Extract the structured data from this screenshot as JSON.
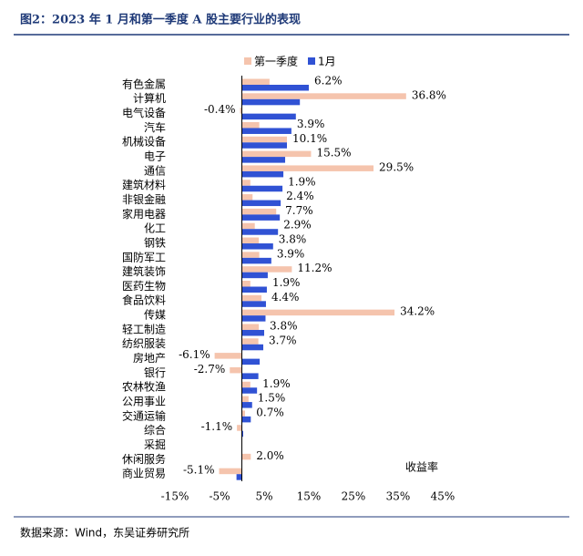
{
  "title": "图2：2023 年 1 月和第一季度 A 股主要行业的表现",
  "source": "数据来源：Wind，东吴证券研究所",
  "chart_data": {
    "type": "hbar",
    "x_annotation": "收益率",
    "categories": [
      "有色金属",
      "计算机",
      "电气设备",
      "汽车",
      "机械设备",
      "电子",
      "通信",
      "建筑材料",
      "非银金融",
      "家用电器",
      "化工",
      "钢铁",
      "国防军工",
      "建筑装饰",
      "医药生物",
      "食品饮料",
      "传媒",
      "轻工制造",
      "纺织服装",
      "房地产",
      "银行",
      "农林牧渔",
      "公用事业",
      "交通运输",
      "综合",
      "采掘",
      "休闲服务",
      "商业贸易"
    ],
    "series": [
      {
        "name": "第一季度",
        "color": "#f5c4ad",
        "values": [
          6.2,
          36.8,
          -0.4,
          3.9,
          10.1,
          15.5,
          29.5,
          1.9,
          2.4,
          7.7,
          2.9,
          3.8,
          3.9,
          11.2,
          1.9,
          4.4,
          34.2,
          3.8,
          3.7,
          -6.1,
          -2.7,
          1.9,
          1.5,
          0.7,
          -1.1,
          null,
          2.0,
          -5.1
        ],
        "value_labels": [
          "6.2%",
          "36.8%",
          "-0.4%",
          "3.9%",
          "10.1%",
          "15.5%",
          "29.5%",
          "1.9%",
          "2.4%",
          "7.7%",
          "2.9%",
          "3.8%",
          "3.9%",
          "11.2%",
          "1.9%",
          "4.4%",
          "34.2%",
          "3.8%",
          "3.7%",
          "-6.1%",
          "-2.7%",
          "1.9%",
          "1.5%",
          "0.7%",
          "-1.1%",
          null,
          "2.0%",
          "-5.1%"
        ]
      },
      {
        "name": "1月",
        "color": "#3052d4",
        "values": [
          15.0,
          13.0,
          12.1,
          11.1,
          10.1,
          9.7,
          9.3,
          9.1,
          8.7,
          8.5,
          8.1,
          7.0,
          6.6,
          5.8,
          5.6,
          5.4,
          5.3,
          5.0,
          4.8,
          4.0,
          3.7,
          3.4,
          2.3,
          2.0,
          0.3,
          null,
          0,
          -1.2
        ]
      }
    ],
    "xlim": [
      -15,
      45
    ],
    "xticks": [
      {
        "value": -15,
        "label": "-15%"
      },
      {
        "value": -5,
        "label": "-5%"
      },
      {
        "value": 5,
        "label": "5%"
      },
      {
        "value": 15,
        "label": "15%"
      },
      {
        "value": 25,
        "label": "25%"
      },
      {
        "value": 35,
        "label": "35%"
      },
      {
        "value": 45,
        "label": "45%"
      }
    ]
  }
}
